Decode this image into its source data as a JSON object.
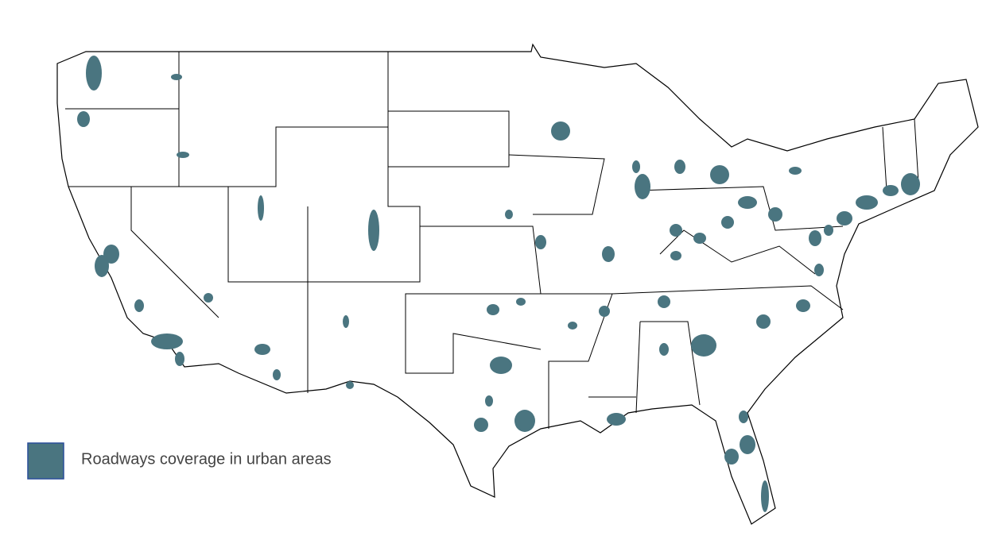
{
  "legend": {
    "label": "Roadways coverage in urban areas"
  }
}
